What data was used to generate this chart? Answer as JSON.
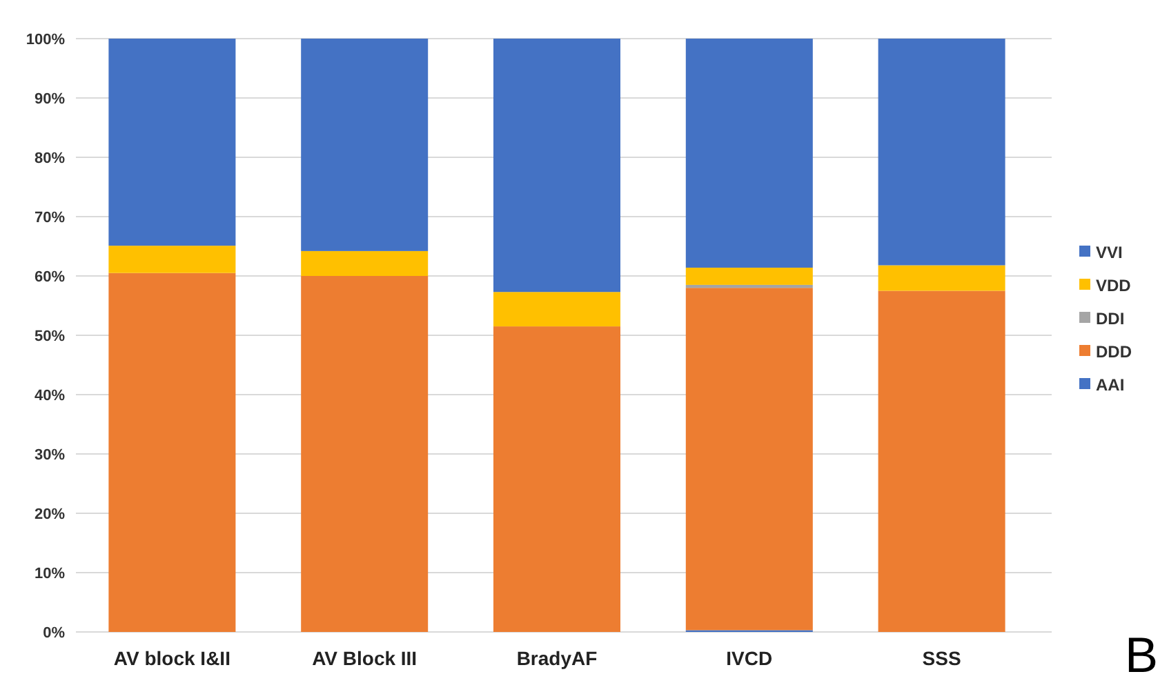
{
  "chart_data": {
    "type": "bar",
    "stacked": true,
    "categories": [
      "AV block I&II",
      "AV Block III",
      "BradyAF",
      "IVCD",
      "SSS"
    ],
    "series": [
      {
        "name": "AAI",
        "color": "#4472c4",
        "values": [
          0,
          0,
          0,
          0.3,
          0
        ]
      },
      {
        "name": "DDD",
        "color": "#ed7d31",
        "values": [
          60.5,
          60,
          51.5,
          57.7,
          57.5
        ]
      },
      {
        "name": "DDI",
        "color": "#a5a5a5",
        "values": [
          0,
          0,
          0,
          0.5,
          0
        ]
      },
      {
        "name": "VDD",
        "color": "#ffc000",
        "values": [
          4.6,
          4.2,
          5.8,
          2.9,
          4.3
        ]
      },
      {
        "name": "VVI",
        "color": "#4472c4",
        "values": [
          34.9,
          35.8,
          42.7,
          38.6,
          38.2
        ]
      }
    ],
    "ylim": [
      0,
      100
    ],
    "yticks": [
      {
        "value": 0,
        "label": "0%"
      },
      {
        "value": 10,
        "label": "10%"
      },
      {
        "value": 20,
        "label": "20%"
      },
      {
        "value": 30,
        "label": "30%"
      },
      {
        "value": 40,
        "label": "40%"
      },
      {
        "value": 50,
        "label": "50%"
      },
      {
        "value": 60,
        "label": "60%"
      },
      {
        "value": 70,
        "label": "70%"
      },
      {
        "value": 80,
        "label": "80%"
      },
      {
        "value": 90,
        "label": "90%"
      },
      {
        "value": 100,
        "label": "100%"
      }
    ],
    "grid": "y",
    "legend": "right",
    "annotations": [
      "B"
    ]
  }
}
